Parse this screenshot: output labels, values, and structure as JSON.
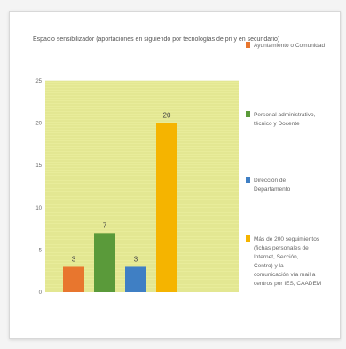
{
  "chart_data": {
    "type": "bar",
    "title": "Espacio sensibilizador (aportaciones en siguiendo por tecnologías de pri y en secundario)",
    "xlabel": "",
    "ylabel": "",
    "ylim": [
      0,
      25
    ],
    "yticks": [
      "25",
      "20",
      "15",
      "10",
      "5",
      "0"
    ],
    "grid": true,
    "legend_position": "right",
    "series": [
      {
        "name": "Ayuntamiento o Comunidad",
        "value": 3,
        "label": "3",
        "color": "#e8762e"
      },
      {
        "name": "Personal administrativo, técnico y Docente",
        "value": 7,
        "label": "7",
        "color": "#5a9a3a"
      },
      {
        "name": "Dirección de Departamento",
        "value": 3,
        "label": "3",
        "color": "#3f7fc4"
      },
      {
        "name": "Más de 200 seguimientos (fichas personales de Internet, Sección, Centro) y la comunicación vía mail a centros por IES, CAADEM",
        "value": 20,
        "label": "20",
        "color": "#f5b400"
      }
    ]
  }
}
